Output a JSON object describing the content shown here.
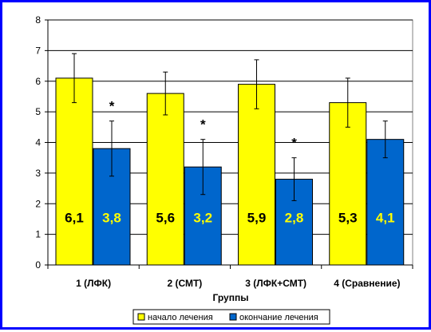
{
  "chart_data": {
    "type": "bar",
    "categories": [
      "1 (ЛФК)",
      "2 (СМТ)",
      "3 (ЛФК+СМТ)",
      "4 (Сравнение)"
    ],
    "series": [
      {
        "name": "начало лечения",
        "color": "#ffff00",
        "values": [
          6.1,
          5.6,
          5.9,
          5.3
        ],
        "error": [
          0.8,
          0.7,
          0.8,
          0.8
        ],
        "labels": [
          "6,1",
          "5,6",
          "5,9",
          "5,3"
        ],
        "label_color": "#000000"
      },
      {
        "name": "окончание лечения",
        "color": "#0066cc",
        "values": [
          3.8,
          3.2,
          2.8,
          4.1
        ],
        "error": [
          0.9,
          0.9,
          0.7,
          0.6
        ],
        "labels": [
          "3,8",
          "3,2",
          "2,8",
          "4,1"
        ],
        "label_color": "#ffff00"
      }
    ],
    "annotations": [
      "*",
      "*",
      "*",
      ""
    ],
    "xlabel": "Группы",
    "ylabel": "",
    "ylim": [
      0,
      8
    ],
    "yticks": [
      "0",
      "1",
      "2",
      "3",
      "4",
      "5",
      "6",
      "7",
      "8"
    ],
    "grid": true,
    "legend_position": "bottom"
  }
}
